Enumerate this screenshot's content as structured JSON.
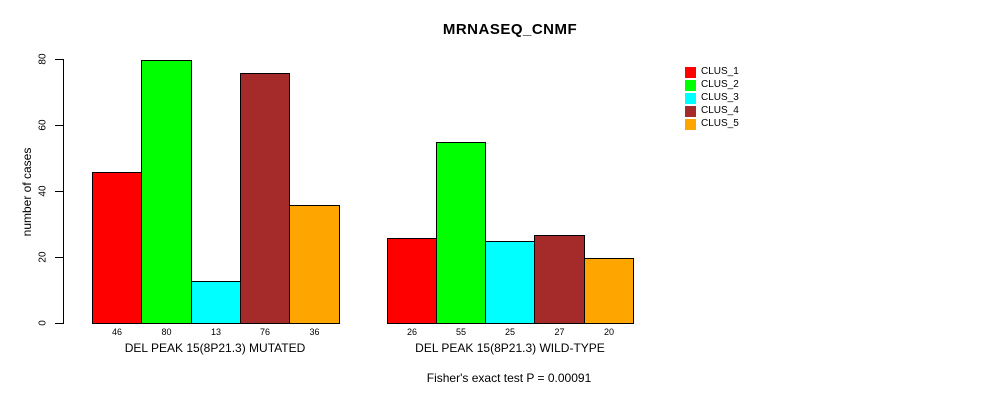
{
  "chart_data": {
    "type": "bar",
    "title": "MRNASEQ_CNMF",
    "ylabel": "number of cases",
    "xlabel": "",
    "ylim": [
      0,
      80
    ],
    "y_ticks": [
      0,
      20,
      40,
      60,
      80
    ],
    "grid": false,
    "categories": [
      "DEL PEAK 15(8P21.3) MUTATED",
      "DEL PEAK 15(8P21.3) WILD-TYPE"
    ],
    "series": [
      {
        "name": "CLUS_1",
        "color": "#ff0000",
        "values": [
          46,
          26
        ]
      },
      {
        "name": "CLUS_2",
        "color": "#00ff00",
        "values": [
          80,
          55
        ]
      },
      {
        "name": "CLUS_3",
        "color": "#00ffff",
        "values": [
          13,
          25
        ]
      },
      {
        "name": "CLUS_4",
        "color": "#a52a2a",
        "values": [
          76,
          27
        ]
      },
      {
        "name": "CLUS_5",
        "color": "#ffa500",
        "values": [
          36,
          20
        ]
      }
    ],
    "bar_value_labels_shown": true,
    "legend": {
      "position": "right",
      "entries": [
        "CLUS_1",
        "CLUS_2",
        "CLUS_3",
        "CLUS_4",
        "CLUS_5"
      ]
    },
    "annotation": "Fisher's exact test P = 0.00091"
  }
}
